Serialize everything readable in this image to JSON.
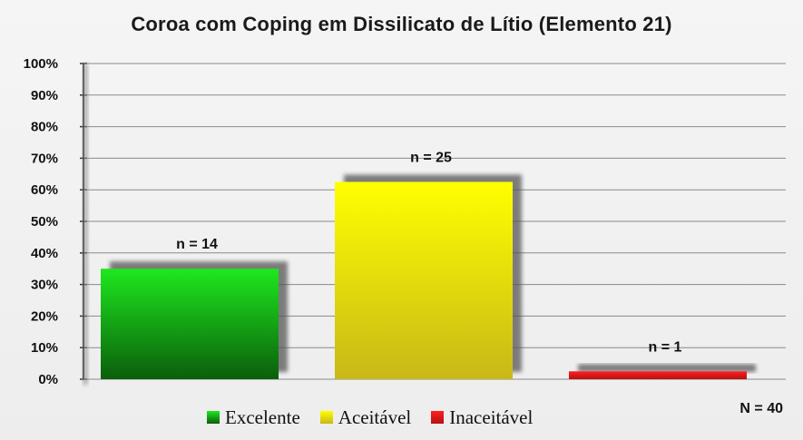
{
  "chart_data": {
    "type": "bar",
    "title": "Coroa com Coping em Dissilicato  de Lítio (Elemento 21)",
    "categories": [
      "Excelente",
      "Aceitável",
      "Inaceitável"
    ],
    "values": [
      35,
      62.5,
      2.5
    ],
    "counts_labels": [
      "n = 14",
      "n = 25",
      "n = 1"
    ],
    "colors": {
      "Excelente": {
        "top": "#1ee81e",
        "bottom": "#0b5e0b"
      },
      "Aceitável": {
        "top": "#ffff00",
        "bottom": "#c8b818"
      },
      "Inaceitável": {
        "top": "#ff2020",
        "bottom": "#b81010"
      }
    },
    "ylim": [
      0,
      100
    ],
    "yticks": [
      "0%",
      "10%",
      "20%",
      "30%",
      "40%",
      "50%",
      "60%",
      "70%",
      "80%",
      "90%",
      "100%"
    ],
    "grid": true,
    "legend_position": "bottom",
    "total_label": "N = 40"
  }
}
